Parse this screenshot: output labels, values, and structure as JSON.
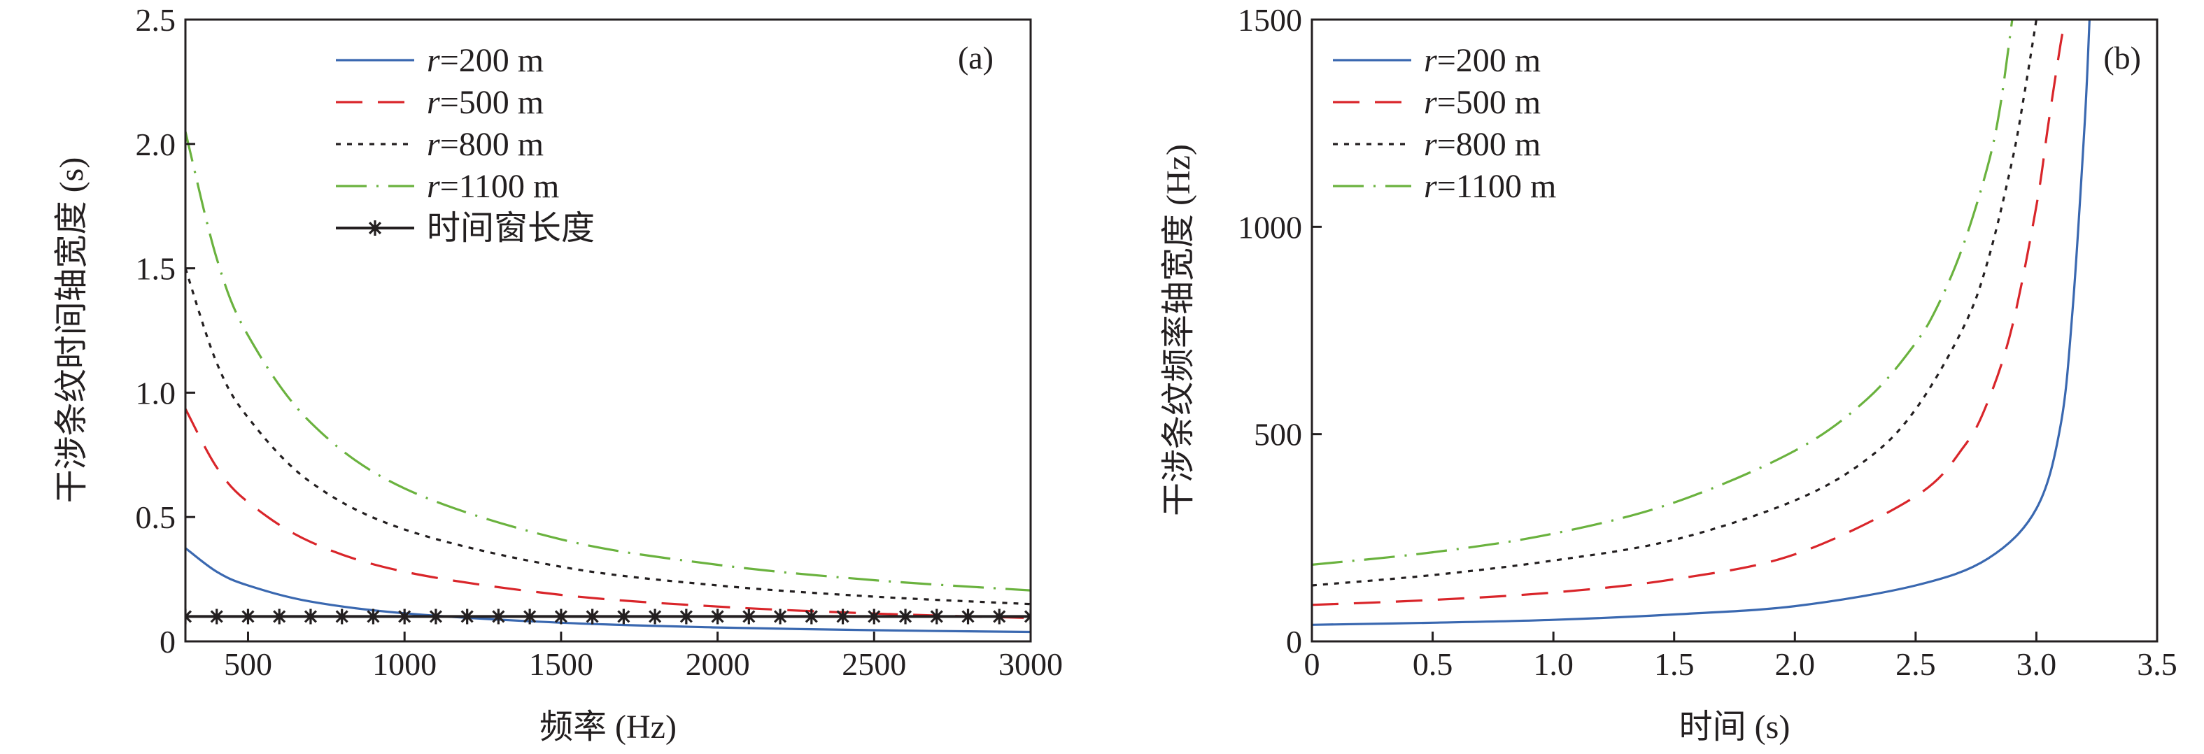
{
  "chart_data": [
    {
      "panel_label": "(a)",
      "type": "line",
      "xlabel": "频率 (Hz)",
      "ylabel": "干涉条纹时间轴宽度 (s)",
      "xlim": [
        300,
        3000
      ],
      "ylim": [
        0,
        2.5
      ],
      "xticks": [
        500,
        1000,
        1500,
        2000,
        2500,
        3000
      ],
      "xtick_labels": [
        "500",
        "1000",
        "1500",
        "2000",
        "2500",
        "3000"
      ],
      "yticks": [
        0,
        0.5,
        1.0,
        1.5,
        2.0,
        2.5
      ],
      "ytick_labels": [
        "0",
        "0.5",
        "1.0",
        "1.5",
        "2.0",
        "2.5"
      ],
      "grid": false,
      "legend_position": "top-center",
      "series": [
        {
          "name": "r=200 m",
          "legend_italic": "r",
          "legend_rest": "=200 m",
          "color": "#3a68b0",
          "dash": "solid",
          "x": [
            300,
            400,
            500,
            700,
            1000,
            1500,
            2000,
            2500,
            3000
          ],
          "y": [
            0.375,
            0.28,
            0.225,
            0.16,
            0.113,
            0.075,
            0.056,
            0.045,
            0.038
          ]
        },
        {
          "name": "r=500 m",
          "legend_italic": "r",
          "legend_rest": "=500 m",
          "color": "#d9252a",
          "dash": "long",
          "x": [
            300,
            400,
            500,
            700,
            1000,
            1500,
            2000,
            2500,
            3000
          ],
          "y": [
            0.935,
            0.7,
            0.56,
            0.4,
            0.28,
            0.187,
            0.14,
            0.112,
            0.094
          ]
        },
        {
          "name": "r=800 m",
          "legend_italic": "r",
          "legend_rest": "=800 m",
          "color": "#231f20",
          "dash": "dot",
          "x": [
            300,
            400,
            500,
            700,
            1000,
            1500,
            2000,
            2500,
            3000
          ],
          "y": [
            1.5,
            1.12,
            0.9,
            0.64,
            0.45,
            0.3,
            0.225,
            0.18,
            0.15
          ]
        },
        {
          "name": "r=1100 m",
          "legend_italic": "r",
          "legend_rest": "=1100 m",
          "color": "#6ab23e",
          "dash": "dashdot",
          "x": [
            300,
            400,
            500,
            700,
            1000,
            1500,
            2000,
            2500,
            3000
          ],
          "y": [
            2.05,
            1.54,
            1.23,
            0.88,
            0.615,
            0.41,
            0.308,
            0.246,
            0.205
          ]
        },
        {
          "name": "时间窗长度",
          "legend_italic": "",
          "legend_rest": "时间窗长度",
          "color": "#231f20",
          "dash": "solid",
          "marker": "star",
          "x": [
            300,
            400,
            500,
            600,
            700,
            800,
            900,
            1000,
            1100,
            1200,
            1300,
            1400,
            1500,
            1600,
            1700,
            1800,
            1900,
            2000,
            2100,
            2200,
            2300,
            2400,
            2500,
            2600,
            2700,
            2800,
            2900,
            3000
          ],
          "y": [
            0.1,
            0.1,
            0.1,
            0.1,
            0.1,
            0.1,
            0.1,
            0.1,
            0.1,
            0.1,
            0.1,
            0.1,
            0.1,
            0.1,
            0.1,
            0.1,
            0.1,
            0.1,
            0.1,
            0.1,
            0.1,
            0.1,
            0.1,
            0.1,
            0.1,
            0.1,
            0.1,
            0.1
          ]
        }
      ]
    },
    {
      "panel_label": "(b)",
      "type": "line",
      "xlabel": "时间 (s)",
      "ylabel": "干涉条纹频率轴宽度 (Hz)",
      "xlim": [
        0,
        3.5
      ],
      "ylim": [
        0,
        1500
      ],
      "xticks": [
        0,
        0.5,
        1.0,
        1.5,
        2.0,
        2.5,
        3.0,
        3.5
      ],
      "xtick_labels": [
        "0",
        "0.5",
        "1.0",
        "1.5",
        "2.0",
        "2.5",
        "3.0",
        "3.5"
      ],
      "yticks": [
        0,
        500,
        1000,
        1500
      ],
      "ytick_labels": [
        "0",
        "500",
        "1000",
        "1500"
      ],
      "grid": false,
      "legend_position": "top-left",
      "series": [
        {
          "name": "r=200 m",
          "legend_italic": "r",
          "legend_rest": "=200 m",
          "color": "#3a68b0",
          "dash": "solid",
          "x": [
            0,
            0.5,
            1.0,
            1.5,
            2.0,
            2.5,
            2.8,
            3.0,
            3.1,
            3.15,
            3.2,
            3.22
          ],
          "y": [
            40,
            45,
            52,
            65,
            85,
            135,
            200,
            320,
            520,
            800,
            1250,
            1500
          ]
        },
        {
          "name": "r=500 m",
          "legend_italic": "r",
          "legend_rest": "=500 m",
          "color": "#d9252a",
          "dash": "long",
          "x": [
            0,
            0.5,
            1.0,
            1.5,
            2.0,
            2.5,
            2.7,
            2.8,
            2.9,
            3.0,
            3.05,
            3.1,
            3.12
          ],
          "y": [
            88,
            100,
            118,
            150,
            210,
            350,
            470,
            580,
            760,
            1050,
            1250,
            1440,
            1500
          ]
        },
        {
          "name": "r=800 m",
          "legend_italic": "r",
          "legend_rest": "=800 m",
          "color": "#231f20",
          "dash": "dot",
          "x": [
            0,
            0.5,
            1.0,
            1.5,
            2.0,
            2.3,
            2.5,
            2.7,
            2.8,
            2.9,
            2.95,
            3.0
          ],
          "y": [
            135,
            160,
            195,
            245,
            340,
            440,
            560,
            760,
            920,
            1160,
            1320,
            1500
          ]
        },
        {
          "name": "r=1100 m",
          "legend_italic": "r",
          "legend_rest": "=1100 m",
          "color": "#6ab23e",
          "dash": "dashdot",
          "x": [
            0,
            0.5,
            1.0,
            1.5,
            2.0,
            2.3,
            2.5,
            2.6,
            2.7,
            2.8,
            2.85,
            2.9
          ],
          "y": [
            185,
            215,
            260,
            335,
            460,
            585,
            720,
            820,
            960,
            1150,
            1290,
            1500
          ]
        }
      ]
    }
  ]
}
